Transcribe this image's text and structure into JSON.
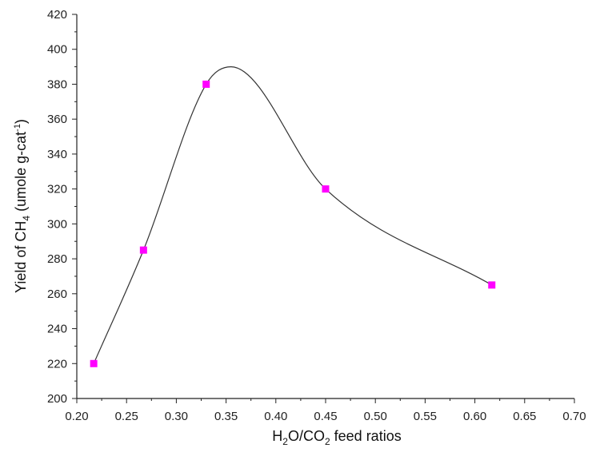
{
  "chart_data": {
    "type": "scatter",
    "xlabel": {
      "parts": [
        "H",
        "2",
        "O/CO",
        "2",
        " feed ratios"
      ]
    },
    "ylabel": {
      "parts": [
        "Yield of CH",
        "4",
        " (umole g-cat",
        "-1",
        ")"
      ]
    },
    "xlim": [
      0.2,
      0.7
    ],
    "ylim": [
      200,
      420
    ],
    "x_ticks": [
      "0.20",
      "0.25",
      "0.30",
      "0.35",
      "0.40",
      "0.45",
      "0.50",
      "0.55",
      "0.60",
      "0.65",
      "0.70"
    ],
    "y_ticks": [
      "200",
      "220",
      "240",
      "260",
      "280",
      "300",
      "320",
      "340",
      "360",
      "380",
      "400",
      "420"
    ],
    "series": [
      {
        "marker": "square",
        "color": "#ff00ff",
        "x": [
          0.217,
          0.267,
          0.33,
          0.45,
          0.617
        ],
        "y": [
          220,
          285,
          380,
          320,
          265
        ]
      }
    ],
    "fit_curve": {
      "color": "#333333",
      "x": [
        0.217,
        0.267,
        0.33,
        0.355,
        0.45,
        0.617
      ],
      "y": [
        220,
        285,
        380,
        390,
        320,
        265
      ]
    },
    "grid": false,
    "legend": "none"
  }
}
